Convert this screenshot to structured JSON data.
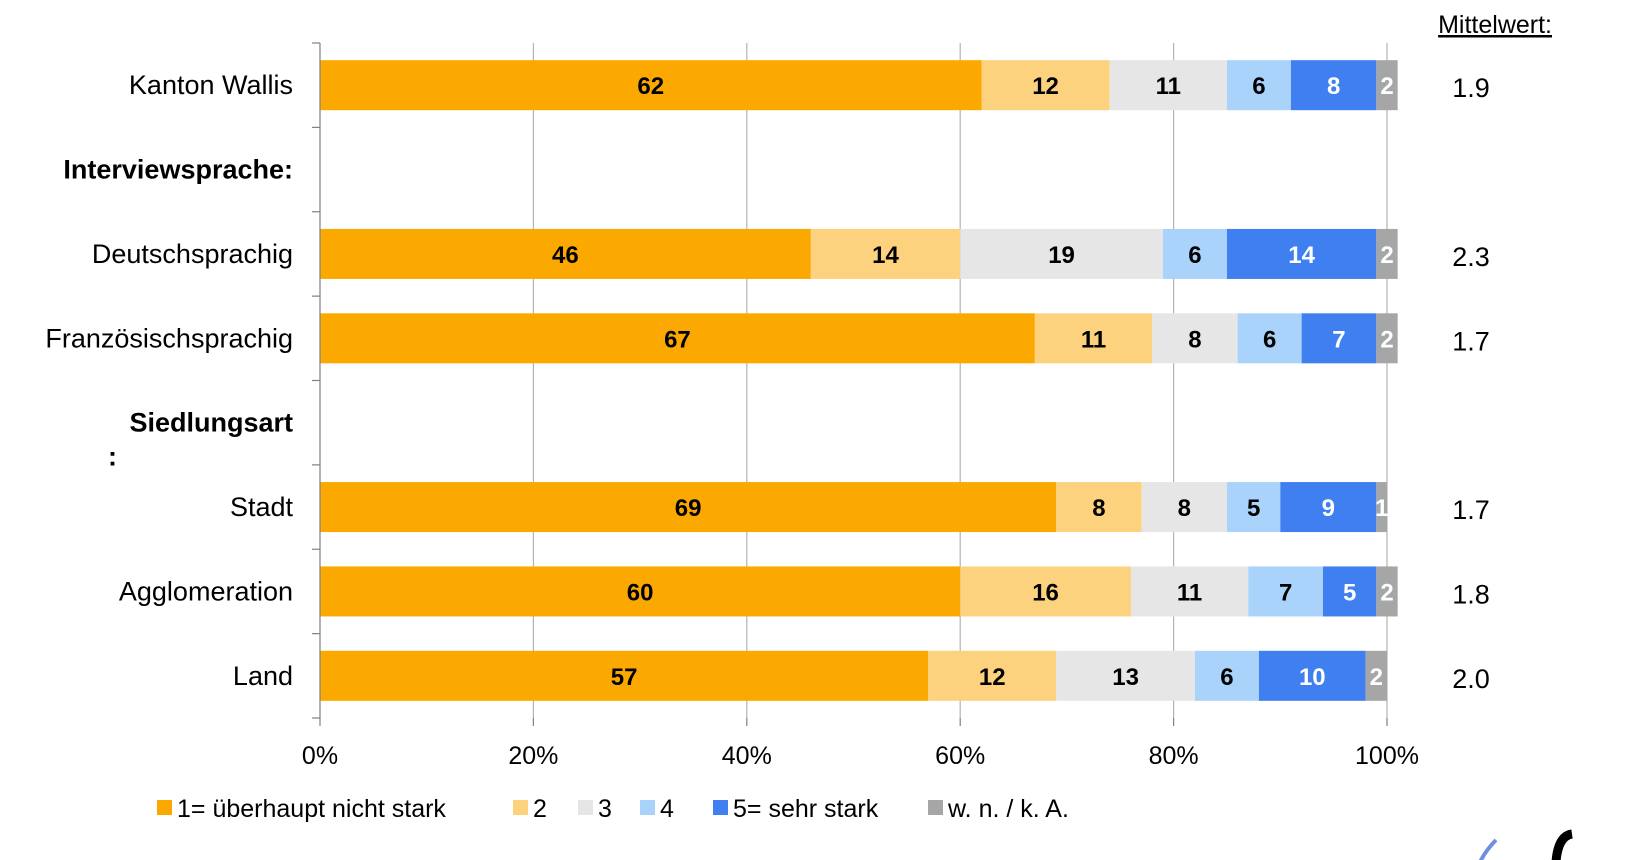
{
  "chart_data": {
    "type": "bar",
    "orientation": "horizontal",
    "stacked": true,
    "x_axis": {
      "min": 0,
      "max": 100,
      "ticks": [
        "0%",
        "20%",
        "40%",
        "60%",
        "80%",
        "100%"
      ]
    },
    "gridlines": true,
    "legend_position": "bottom",
    "mean_header": "Mittelwert:",
    "rows": [
      {
        "label": "Kanton Wallis",
        "values": [
          62,
          12,
          11,
          6,
          8,
          2
        ],
        "mean": "1.9"
      },
      {
        "label": "Interviewsprache:",
        "header": true
      },
      {
        "label": "Deutschsprachig",
        "values": [
          46,
          14,
          19,
          6,
          14,
          2
        ],
        "mean": "2.3"
      },
      {
        "label": "Französischsprachig",
        "values": [
          67,
          11,
          8,
          6,
          7,
          2
        ],
        "mean": "1.7"
      },
      {
        "label": "Siedlungsart",
        "label_line2": ":",
        "header": true
      },
      {
        "label": "Stadt",
        "values": [
          69,
          8,
          8,
          5,
          9,
          1
        ],
        "mean": "1.7"
      },
      {
        "label": "Agglomeration",
        "values": [
          60,
          16,
          11,
          7,
          5,
          2
        ],
        "mean": "1.8"
      },
      {
        "label": "Land",
        "values": [
          57,
          12,
          13,
          6,
          10,
          2
        ],
        "mean": "2.0"
      }
    ],
    "series": [
      {
        "name": "1= überhaupt nicht stark",
        "color": "#FBA900",
        "label_color": "#000000"
      },
      {
        "name": "2",
        "color": "#FDD27E",
        "label_color": "#000000"
      },
      {
        "name": "3",
        "color": "#E6E6E6",
        "label_color": "#000000"
      },
      {
        "name": "4",
        "color": "#A9D3FA",
        "label_color": "#000000"
      },
      {
        "name": "5= sehr stark",
        "color": "#3F7FF0",
        "label_color": "#FFFFFF"
      },
      {
        "name": "w. n. / k. A.",
        "color": "#A6A6A6",
        "label_color": "#FFFFFF"
      }
    ],
    "gridline_color": "#B3B3B3",
    "axis_color": "#808080"
  }
}
